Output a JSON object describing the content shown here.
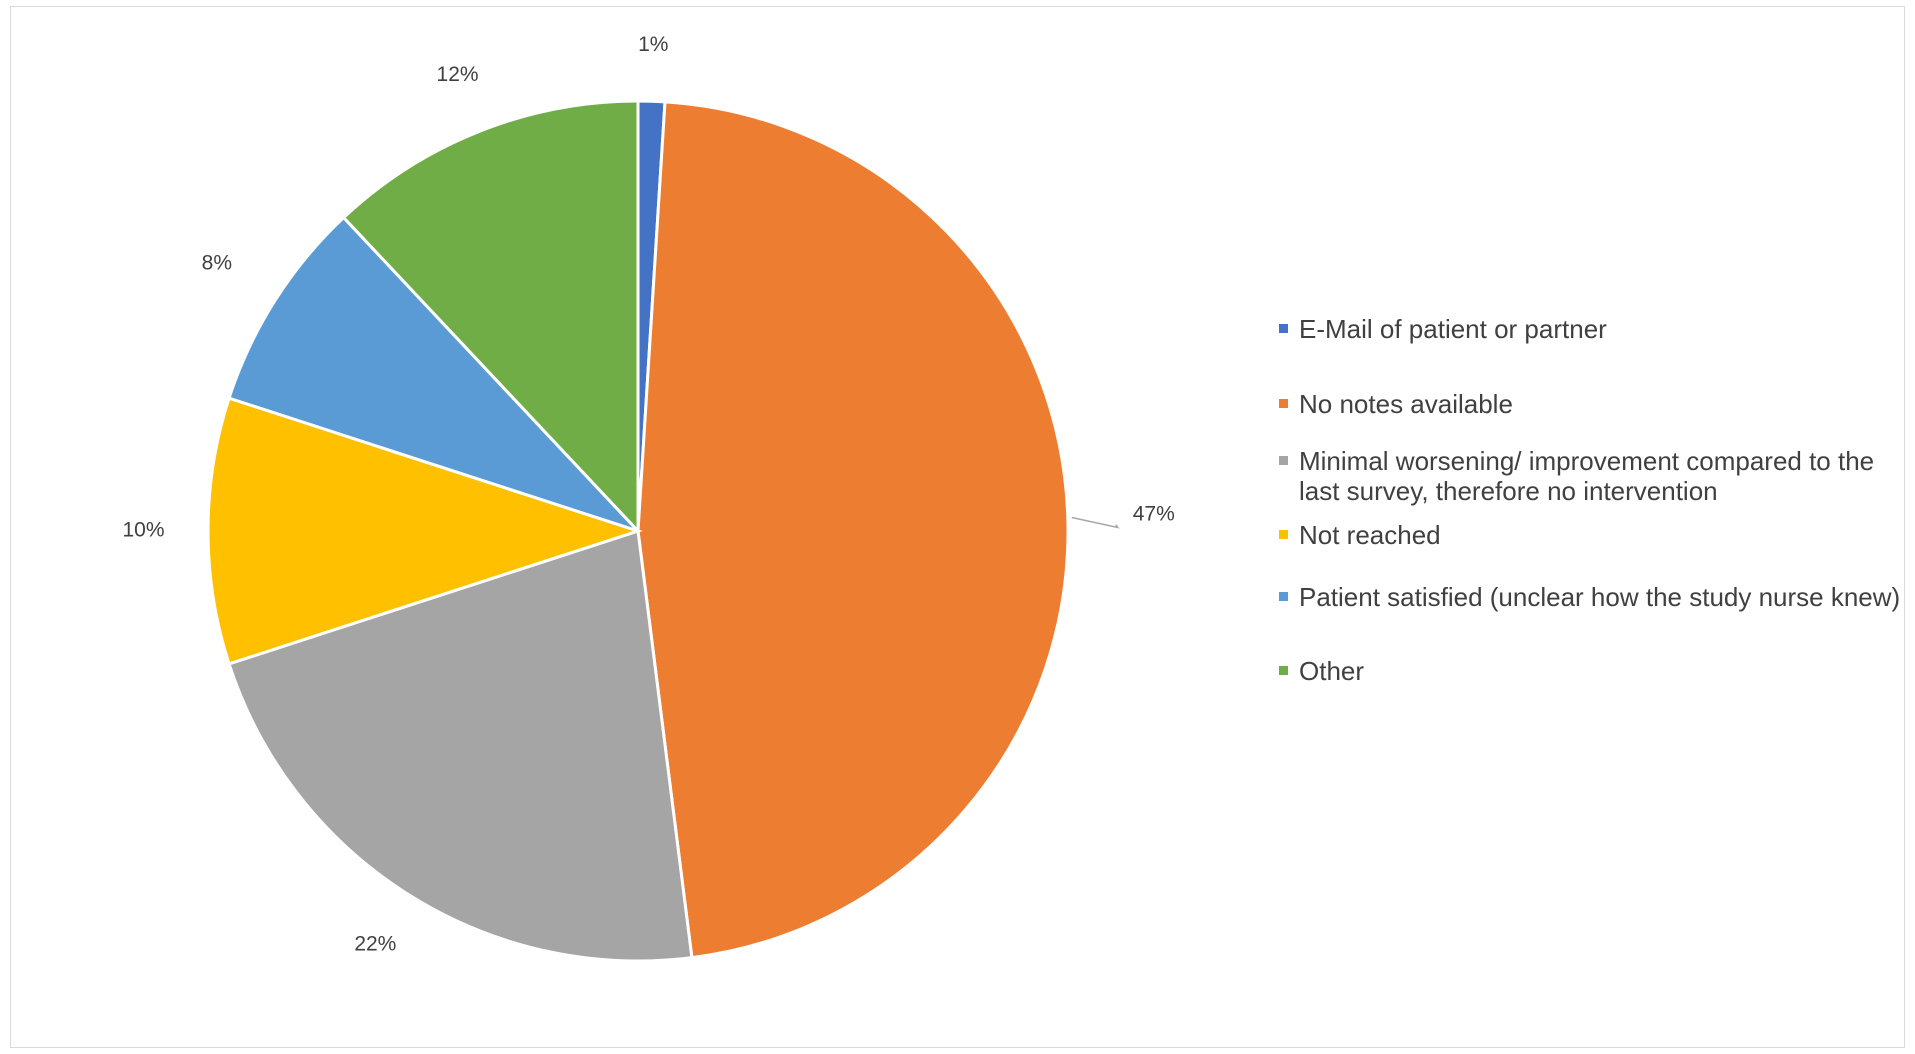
{
  "chart_data": {
    "type": "pie",
    "title": "",
    "categories": [
      "E-Mail of patient or partner",
      "No notes available",
      "Minimal worsening/ improvement compared to the last survey, therefore no intervention",
      "Not reached",
      "Patient satisfied (unclear how the study nurse knew)",
      "Other"
    ],
    "values": [
      1,
      47,
      22,
      10,
      8,
      12
    ],
    "data_labels": [
      "1%",
      "47%",
      "22%",
      "10%",
      "8%",
      "12%"
    ],
    "colors": [
      "#4472C4",
      "#ED7D31",
      "#A5A5A5",
      "#FFC000",
      "#5B9BD5",
      "#70AD47"
    ],
    "legend_position": "right",
    "start_angle_deg": 0,
    "direction": "clockwise"
  },
  "legend": {
    "items": [
      {
        "label": "E-Mail of patient or partner",
        "color": "#4472C4"
      },
      {
        "label": "No notes available",
        "color": "#ED7D31"
      },
      {
        "label": "Minimal worsening/ improvement compared to the last survey, therefore no intervention",
        "color": "#A5A5A5"
      },
      {
        "label": "Not reached",
        "color": "#FFC000"
      },
      {
        "label": "Patient satisfied (unclear how the study nurse knew)",
        "color": "#5B9BD5"
      },
      {
        "label": "Other",
        "color": "#70AD47"
      }
    ]
  }
}
